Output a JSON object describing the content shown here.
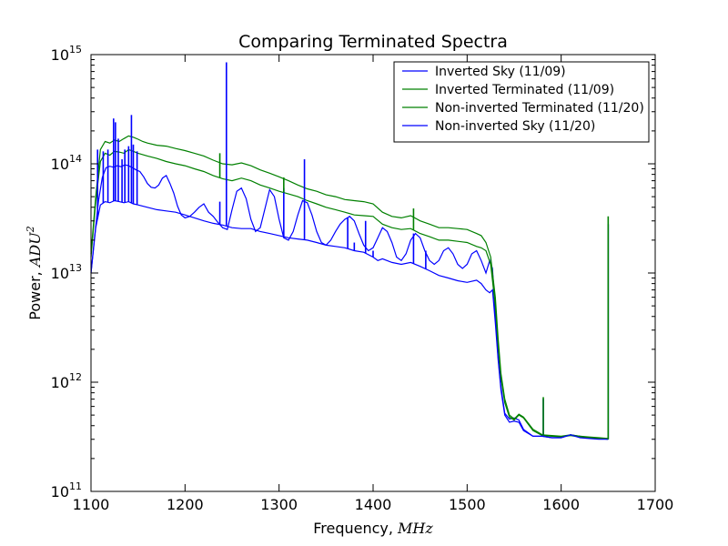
{
  "chart_data": {
    "type": "line",
    "title": "Comparing Terminated Spectra",
    "xlabel_prefix": "Frequency, ",
    "xlabel_unit": "MHz",
    "ylabel_prefix": "Power, ",
    "ylabel_unit": "ADU",
    "ylabel_unit_exp": "2",
    "xlim": [
      1100,
      1700
    ],
    "ylim": [
      100000000000.0,
      1000000000000000.0
    ],
    "yscale": "log",
    "xticks": [
      "1100",
      "1200",
      "1300",
      "1400",
      "1500",
      "1600",
      "1700"
    ],
    "yticks": [
      {
        "base": "10",
        "exp": "11"
      },
      {
        "base": "10",
        "exp": "12"
      },
      {
        "base": "10",
        "exp": "13"
      },
      {
        "base": "10",
        "exp": "14"
      },
      {
        "base": "10",
        "exp": "15"
      }
    ],
    "legend_position": "top-right",
    "series": [
      {
        "name": "Inverted Sky (11/09)",
        "color": "#0000ff",
        "x": [
          1100,
          1104,
          1108,
          1112,
          1116,
          1120,
          1124,
          1128,
          1132,
          1136,
          1140,
          1144,
          1148,
          1152,
          1156,
          1160,
          1164,
          1168,
          1172,
          1176,
          1180,
          1184,
          1188,
          1192,
          1196,
          1200,
          1205,
          1210,
          1215,
          1220,
          1225,
          1230,
          1235,
          1240,
          1245,
          1250,
          1255,
          1260,
          1265,
          1270,
          1275,
          1280,
          1285,
          1290,
          1295,
          1300,
          1305,
          1310,
          1315,
          1320,
          1325,
          1330,
          1335,
          1340,
          1345,
          1350,
          1355,
          1360,
          1365,
          1370,
          1375,
          1380,
          1385,
          1390,
          1395,
          1400,
          1405,
          1410,
          1415,
          1420,
          1425,
          1430,
          1435,
          1440,
          1445,
          1450,
          1455,
          1460,
          1465,
          1470,
          1475,
          1480,
          1485,
          1490,
          1495,
          1500,
          1505,
          1510,
          1515,
          1520,
          1524,
          1527,
          1530,
          1533,
          1536,
          1540,
          1545,
          1550,
          1555,
          1560,
          1570,
          1580,
          1590,
          1600,
          1610,
          1620,
          1630,
          1640,
          1650
        ],
        "y": [
          10000000000000.0,
          22000000000000.0,
          46000000000000.0,
          75000000000000.0,
          92000000000000.0,
          95000000000000.0,
          93000000000000.0,
          96000000000000.0,
          94000000000000.0,
          98000000000000.0,
          96000000000000.0,
          92000000000000.0,
          88000000000000.0,
          85000000000000.0,
          76000000000000.0,
          66000000000000.0,
          61000000000000.0,
          60000000000000.0,
          64000000000000.0,
          74000000000000.0,
          78000000000000.0,
          66000000000000.0,
          54000000000000.0,
          41000000000000.0,
          34000000000000.0,
          32000000000000.0,
          33000000000000.0,
          36000000000000.0,
          40000000000000.0,
          43000000000000.0,
          36000000000000.0,
          33000000000000.0,
          29000000000000.0,
          26000000000000.0,
          25000000000000.0,
          38000000000000.0,
          56000000000000.0,
          60000000000000.0,
          48000000000000.0,
          31000000000000.0,
          24000000000000.0,
          26000000000000.0,
          39000000000000.0,
          58000000000000.0,
          50000000000000.0,
          31000000000000.0,
          21000000000000.0,
          20000000000000.0,
          24000000000000.0,
          34000000000000.0,
          46000000000000.0,
          44000000000000.0,
          34000000000000.0,
          24000000000000.0,
          19000000000000.0,
          18000000000000.0,
          20000000000000.0,
          24000000000000.0,
          28000000000000.0,
          31000000000000.0,
          33000000000000.0,
          30000000000000.0,
          23000000000000.0,
          18000000000000.0,
          16000000000000.0,
          17000000000000.0,
          21000000000000.0,
          26000000000000.0,
          24000000000000.0,
          19000000000000.0,
          14000000000000.0,
          13000000000000.0,
          15000000000000.0,
          20000000000000.0,
          23000000000000.0,
          21000000000000.0,
          16000000000000.0,
          13000000000000.0,
          12000000000000.0,
          13000000000000.0,
          16000000000000.0,
          17000000000000.0,
          15000000000000.0,
          12000000000000.0,
          11000000000000.0,
          12000000000000.0,
          15000000000000.0,
          16000000000000.0,
          13000000000000.0,
          10000000000000.0,
          13000000000000.0,
          11000000000000.0,
          4000000000000.0,
          1700000000000.0,
          900000000000.0,
          520000000000.0,
          460000000000.0,
          470000000000.0,
          450000000000.0,
          370000000000.0,
          320000000000.0,
          320000000000.0,
          310000000000.0,
          310000000000.0,
          330000000000.0,
          320000000000.0,
          310000000000.0,
          305000000000.0,
          300000000000.0
        ]
      },
      {
        "name": "Inverted Terminated (11/09)",
        "color": "#008000",
        "x": [
          1100,
          1105,
          1110,
          1115,
          1120,
          1125,
          1130,
          1135,
          1140,
          1145,
          1150,
          1155,
          1160,
          1170,
          1180,
          1190,
          1200,
          1210,
          1220,
          1230,
          1240,
          1250,
          1260,
          1270,
          1280,
          1290,
          1300,
          1310,
          1320,
          1330,
          1340,
          1350,
          1360,
          1370,
          1380,
          1390,
          1400,
          1410,
          1420,
          1430,
          1440,
          1450,
          1460,
          1470,
          1480,
          1490,
          1500,
          1510,
          1515,
          1520,
          1525,
          1530,
          1533,
          1536,
          1540,
          1545,
          1550,
          1555,
          1560,
          1570,
          1580,
          1590,
          1600,
          1610,
          1620,
          1630,
          1640,
          1650
        ],
        "y": [
          15000000000000.0,
          50000000000000.0,
          135000000000000.0,
          160000000000000.0,
          155000000000000.0,
          165000000000000.0,
          160000000000000.0,
          170000000000000.0,
          180000000000000.0,
          175000000000000.0,
          168000000000000.0,
          160000000000000.0,
          155000000000000.0,
          148000000000000.0,
          145000000000000.0,
          138000000000000.0,
          132000000000000.0,
          125000000000000.0,
          118000000000000.0,
          108000000000000.0,
          100000000000000.0,
          98000000000000.0,
          102000000000000.0,
          96000000000000.0,
          88000000000000.0,
          82000000000000.0,
          76000000000000.0,
          70000000000000.0,
          64000000000000.0,
          59000000000000.0,
          56000000000000.0,
          52000000000000.0,
          50000000000000.0,
          47000000000000.0,
          46000000000000.0,
          45000000000000.0,
          43000000000000.0,
          36000000000000.0,
          33000000000000.0,
          32000000000000.0,
          33500000000000.0,
          30000000000000.0,
          28000000000000.0,
          26000000000000.0,
          26000000000000.0,
          25500000000000.0,
          25000000000000.0,
          23000000000000.0,
          22000000000000.0,
          19000000000000.0,
          14000000000000.0,
          6000000000000.0,
          2500000000000.0,
          1200000000000.0,
          700000000000.0,
          500000000000.0,
          460000000000.0,
          510000000000.0,
          480000000000.0,
          370000000000.0,
          330000000000.0,
          325000000000.0,
          320000000000.0,
          330000000000.0,
          320000000000.0,
          315000000000.0,
          310000000000.0,
          305000000000.0
        ]
      },
      {
        "name": "Non-inverted Terminated (11/20)",
        "color": "#008000",
        "x": [
          1100,
          1105,
          1110,
          1115,
          1120,
          1125,
          1130,
          1135,
          1140,
          1145,
          1150,
          1160,
          1170,
          1180,
          1190,
          1200,
          1210,
          1220,
          1230,
          1240,
          1250,
          1260,
          1270,
          1280,
          1290,
          1300,
          1310,
          1320,
          1330,
          1340,
          1350,
          1360,
          1370,
          1380,
          1390,
          1400,
          1410,
          1420,
          1430,
          1440,
          1450,
          1460,
          1470,
          1480,
          1490,
          1500,
          1510,
          1515,
          1520,
          1525,
          1530,
          1533,
          1536,
          1540,
          1545,
          1550,
          1555,
          1560,
          1570,
          1580,
          1590,
          1600,
          1610,
          1620,
          1630,
          1640,
          1650
        ],
        "y": [
          14000000000000.0,
          45000000000000.0,
          105000000000000.0,
          125000000000000.0,
          120000000000000.0,
          130000000000000.0,
          128000000000000.0,
          125000000000000.0,
          135000000000000.0,
          130000000000000.0,
          125000000000000.0,
          118000000000000.0,
          112000000000000.0,
          105000000000000.0,
          100000000000000.0,
          96000000000000.0,
          90000000000000.0,
          85000000000000.0,
          78000000000000.0,
          73000000000000.0,
          70000000000000.0,
          74000000000000.0,
          70000000000000.0,
          64000000000000.0,
          60000000000000.0,
          56000000000000.0,
          53000000000000.0,
          50000000000000.0,
          46000000000000.0,
          43000000000000.0,
          40000000000000.0,
          38000000000000.0,
          36000000000000.0,
          34000000000000.0,
          33500000000000.0,
          33000000000000.0,
          28000000000000.0,
          26000000000000.0,
          25000000000000.0,
          25500000000000.0,
          23000000000000.0,
          21500000000000.0,
          20000000000000.0,
          20000000000000.0,
          19500000000000.0,
          19000000000000.0,
          17500000000000.0,
          17000000000000.0,
          16000000000000.0,
          12000000000000.0,
          5000000000000.0,
          2200000000000.0,
          1100000000000.0,
          650000000000.0,
          480000000000.0,
          450000000000.0,
          500000000000.0,
          470000000000.0,
          360000000000.0,
          325000000000.0,
          320000000000.0,
          315000000000.0,
          325000000000.0,
          315000000000.0,
          310000000000.0,
          305000000000.0,
          300000000000.0
        ]
      },
      {
        "name": "Non-inverted Sky (11/20)",
        "color": "#0000ff",
        "x": [
          1100,
          1105,
          1110,
          1115,
          1120,
          1125,
          1130,
          1135,
          1140,
          1145,
          1150,
          1160,
          1170,
          1180,
          1190,
          1200,
          1210,
          1220,
          1230,
          1240,
          1250,
          1260,
          1270,
          1280,
          1290,
          1300,
          1310,
          1320,
          1330,
          1340,
          1350,
          1360,
          1370,
          1380,
          1390,
          1400,
          1405,
          1410,
          1420,
          1430,
          1440,
          1450,
          1460,
          1470,
          1480,
          1490,
          1500,
          1510,
          1515,
          1520,
          1524,
          1527,
          1530,
          1533,
          1536,
          1540,
          1545,
          1550,
          1555,
          1560,
          1570,
          1580,
          1590,
          1600,
          1610,
          1620,
          1630,
          1640,
          1650
        ],
        "y": [
          10000000000000.0,
          26000000000000.0,
          42000000000000.0,
          45000000000000.0,
          44000000000000.0,
          46000000000000.0,
          45000000000000.0,
          44000000000000.0,
          45000000000000.0,
          43000000000000.0,
          42000000000000.0,
          40000000000000.0,
          38000000000000.0,
          37000000000000.0,
          36000000000000.0,
          34000000000000.0,
          32000000000000.0,
          30000000000000.0,
          28500000000000.0,
          27500000000000.0,
          26000000000000.0,
          25500000000000.0,
          25500000000000.0,
          24000000000000.0,
          23000000000000.0,
          22000000000000.0,
          21000000000000.0,
          20500000000000.0,
          20000000000000.0,
          19000000000000.0,
          18000000000000.0,
          17500000000000.0,
          17000000000000.0,
          16000000000000.0,
          15500000000000.0,
          14000000000000.0,
          13000000000000.0,
          13500000000000.0,
          12500000000000.0,
          12000000000000.0,
          12500000000000.0,
          11500000000000.0,
          10500000000000.0,
          9500000000000.0,
          9000000000000.0,
          8500000000000.0,
          8200000000000.0,
          8600000000000.0,
          8000000000000.0,
          7000000000000.0,
          6600000000000.0,
          7000000000000.0,
          3500000000000.0,
          1600000000000.0,
          850000000000.0,
          500000000000.0,
          430000000000.0,
          440000000000.0,
          430000000000.0,
          360000000000.0,
          320000000000.0,
          320000000000.0,
          310000000000.0,
          310000000000.0,
          330000000000.0,
          310000000000.0,
          305000000000.0,
          300000000000.0,
          300000000000.0
        ]
      }
    ],
    "spikes": [
      {
        "color": "#0000ff",
        "x": [
          1107,
          1113,
          1118,
          1124,
          1126,
          1129,
          1133,
          1136,
          1140,
          1143,
          1145,
          1149,
          1237,
          1244,
          1305,
          1327,
          1373,
          1380,
          1392,
          1400,
          1443,
          1456,
          1581,
          1650
        ],
        "peak": [
          135000000000000.0,
          130000000000000.0,
          135000000000000.0,
          260000000000000.0,
          240000000000000.0,
          170000000000000.0,
          110000000000000.0,
          135000000000000.0,
          145000000000000.0,
          280000000000000.0,
          150000000000000.0,
          130000000000000.0,
          45000000000000.0,
          850000000000000.0,
          60000000000000.0,
          110000000000000.0,
          32000000000000.0,
          19000000000000.0,
          30000000000000.0,
          16000000000000.0,
          23000000000000.0,
          16000000000000.0,
          700000000000.0,
          28000000000000.0
        ]
      },
      {
        "color": "#008000",
        "x": [
          1237,
          1305,
          1443,
          1581,
          1650
        ],
        "peak": [
          125000000000000.0,
          75000000000000.0,
          39000000000000.0,
          730000000000.0,
          33000000000000.0
        ]
      }
    ]
  }
}
